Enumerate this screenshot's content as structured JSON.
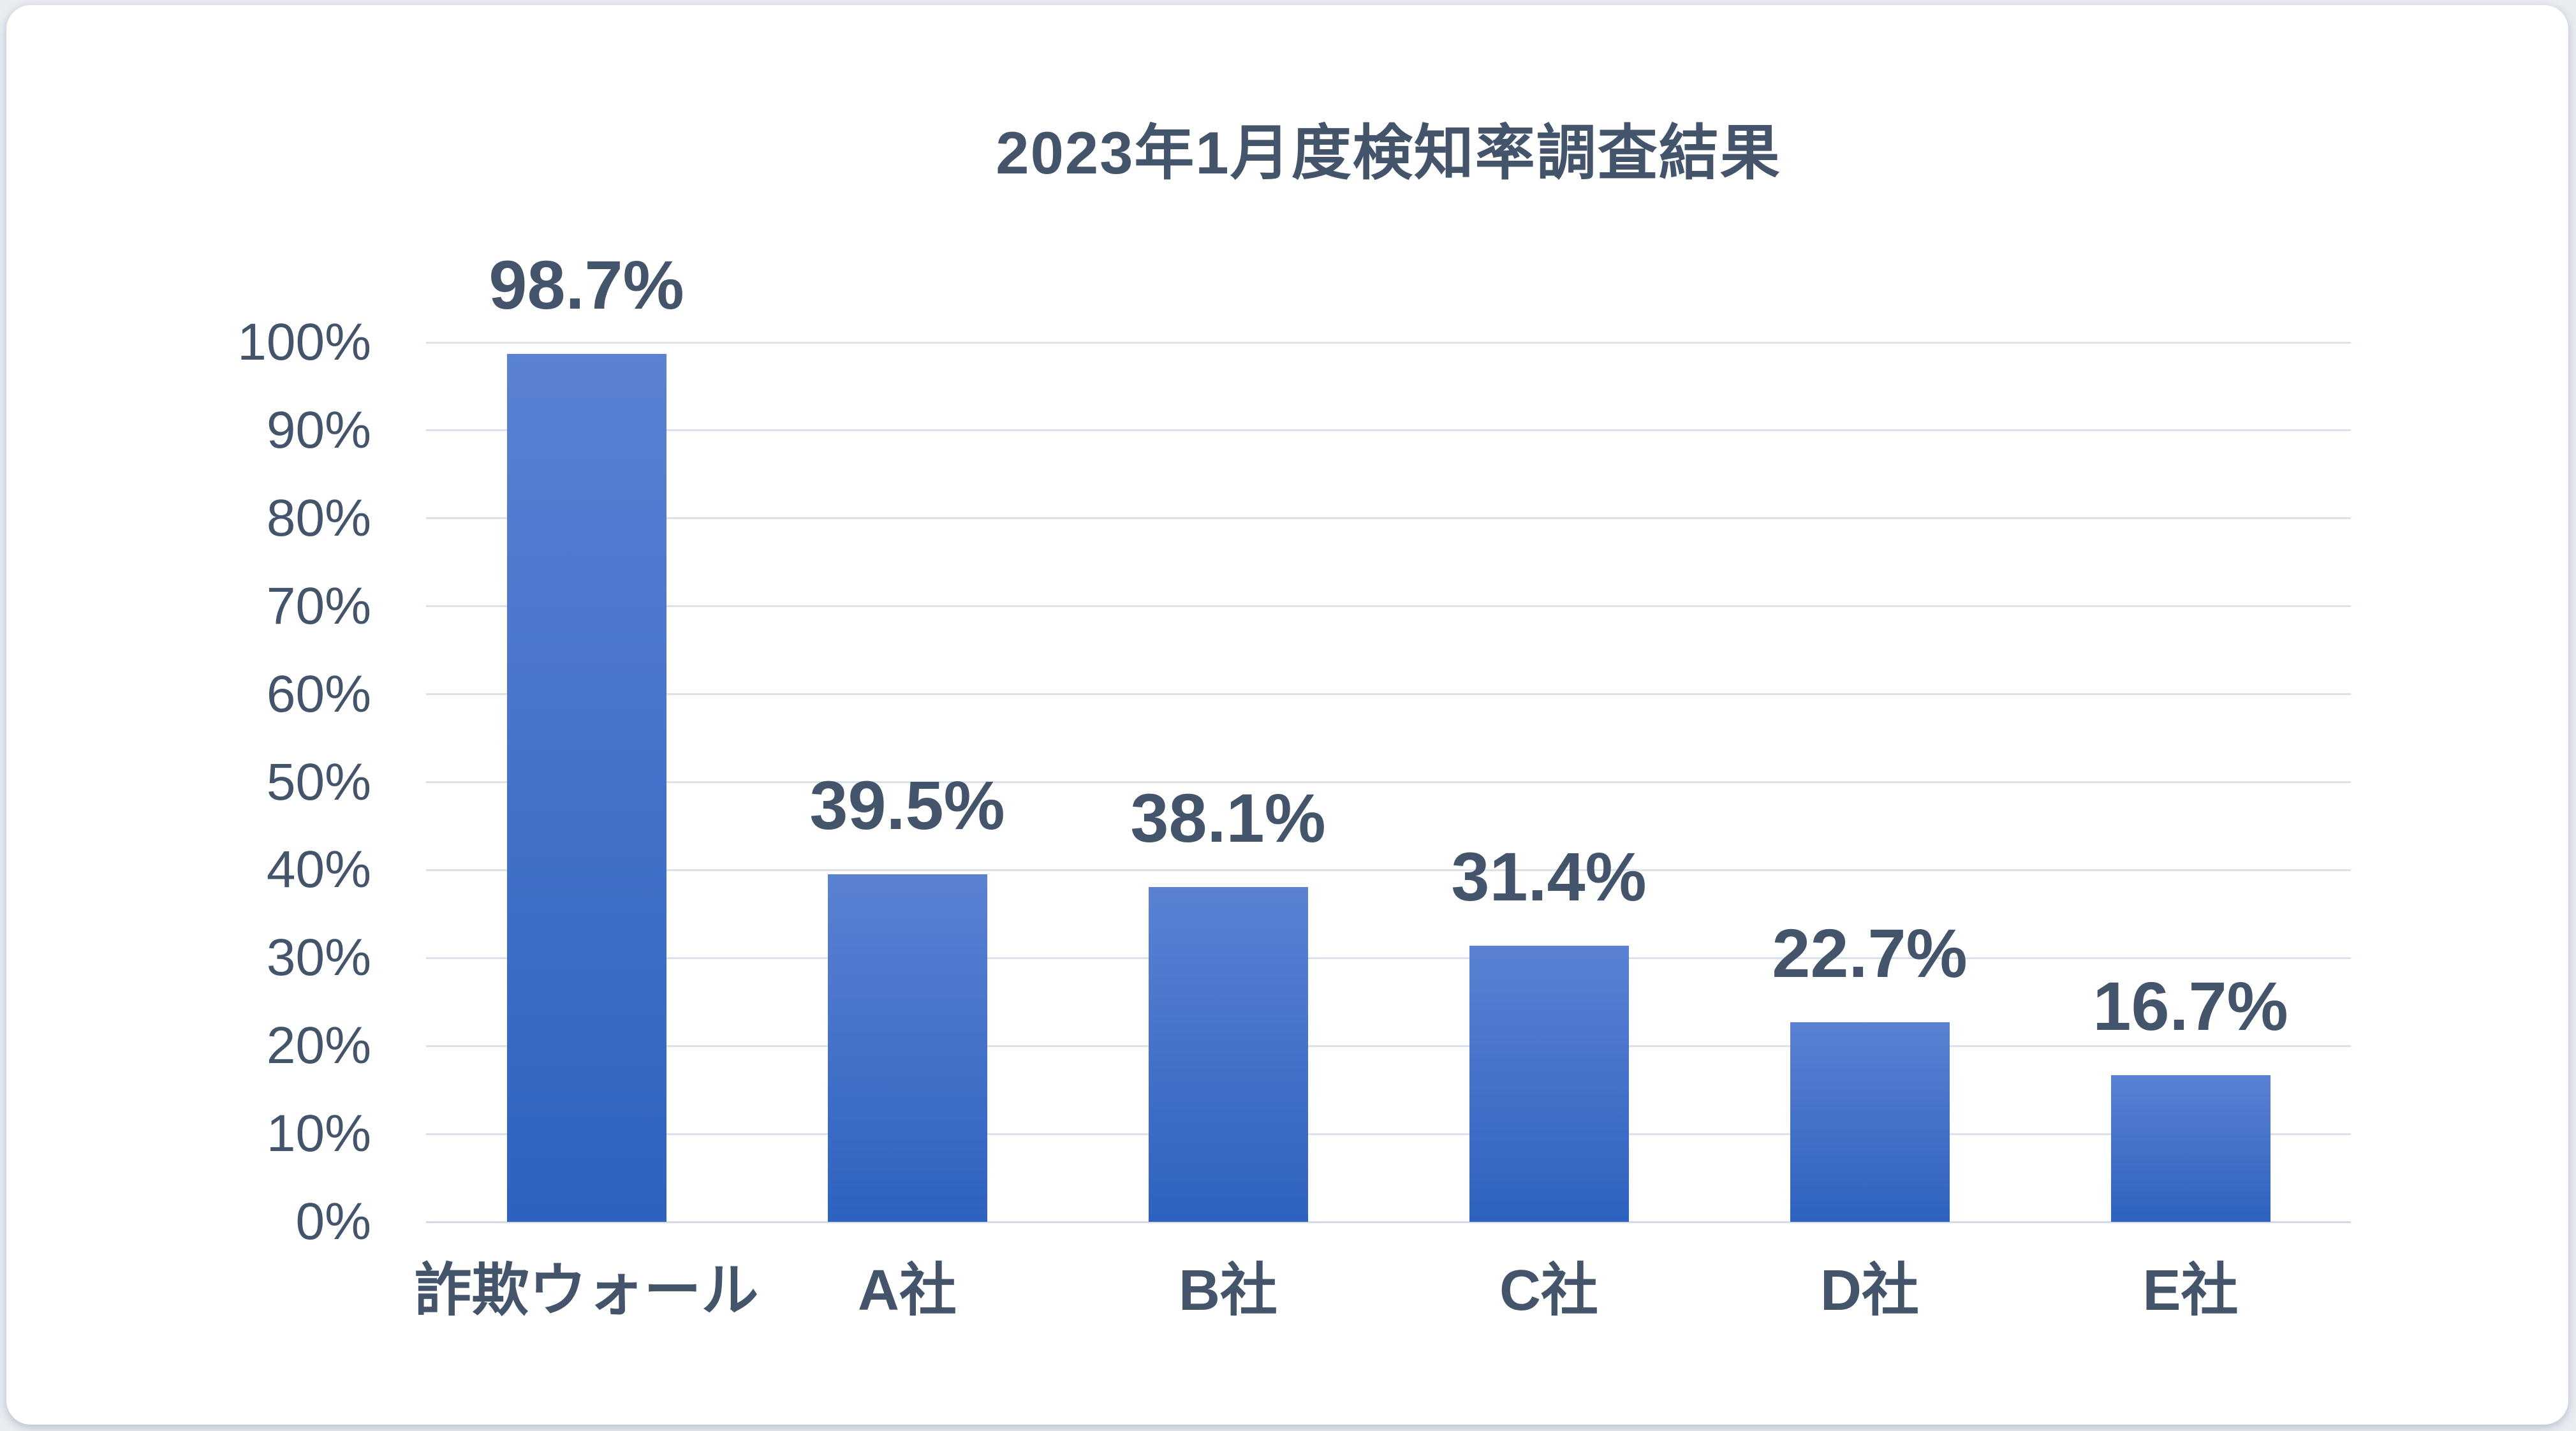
{
  "chart_data": {
    "type": "bar",
    "title": "2023年1月度検知率調査結果",
    "categories": [
      "詐欺ウォール",
      "A社",
      "B社",
      "C社",
      "D社",
      "E社"
    ],
    "values": [
      98.7,
      39.5,
      38.1,
      31.4,
      22.7,
      16.7
    ],
    "value_labels": [
      "98.7%",
      "39.5%",
      "38.1%",
      "31.4%",
      "22.7%",
      "16.7%"
    ],
    "y_axis": {
      "ticks": [
        "0%",
        "10%",
        "20%",
        "30%",
        "40%",
        "50%",
        "60%",
        "70%",
        "80%",
        "90%",
        "100%"
      ],
      "tick_values": [
        0,
        10,
        20,
        30,
        40,
        50,
        60,
        70,
        80,
        90,
        100
      ],
      "min": 0,
      "max": 100
    },
    "xlabel": "",
    "ylabel": "",
    "grid": true,
    "legend": "none",
    "colors": {
      "bar_gradient_top": "#5b82d3",
      "bar_gradient_bottom": "#2e62c0",
      "text": "#44546A",
      "gridline": "#dce2eb",
      "axis_line": "#d3dae3",
      "card_background": "#ffffff",
      "page_background": "#e9edf2"
    }
  }
}
